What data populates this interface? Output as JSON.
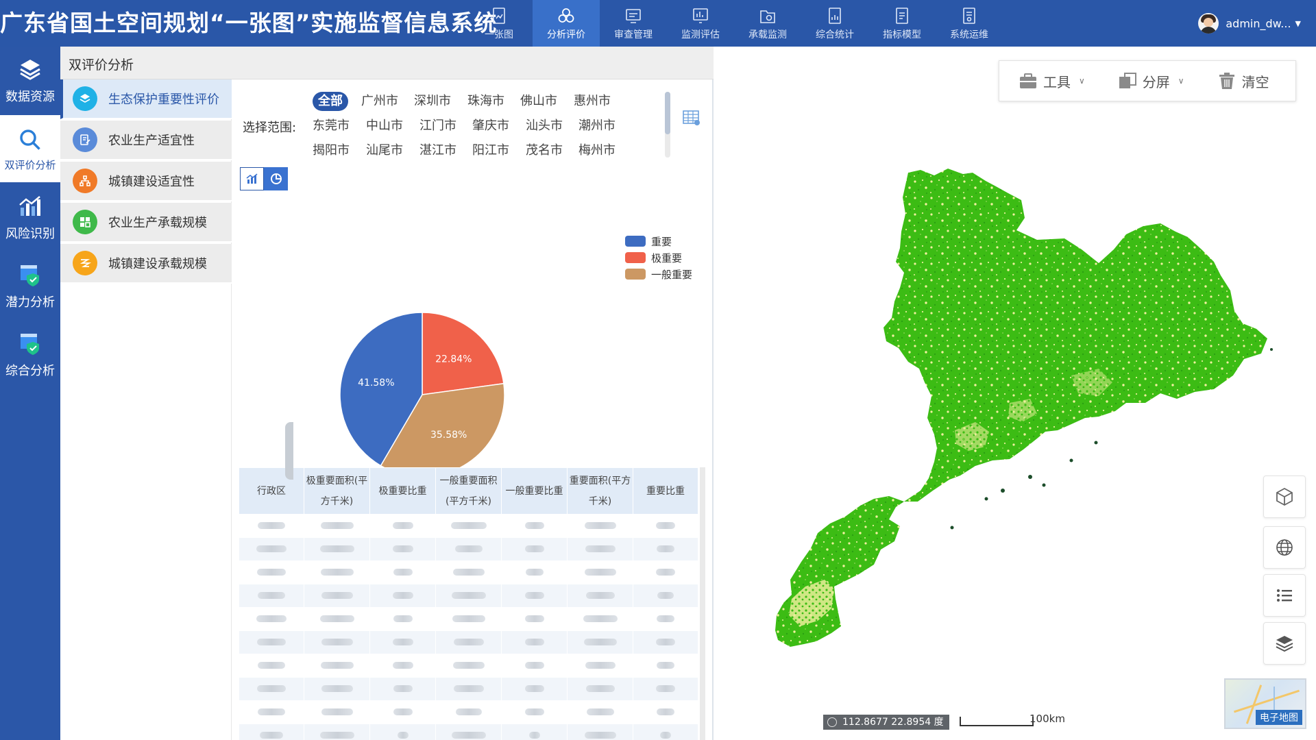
{
  "app": {
    "title": "广东省国土空间规划“一张图”实施监督信息系统"
  },
  "nav": [
    {
      "label": "一张图",
      "icon": "map-doc-icon",
      "active": false
    },
    {
      "label": "分析评价",
      "icon": "analysis-icon",
      "active": true
    },
    {
      "label": "审查管理",
      "icon": "review-icon",
      "active": false
    },
    {
      "label": "监测评估",
      "icon": "monitor-icon",
      "active": false
    },
    {
      "label": "承载监测",
      "icon": "capacity-icon",
      "active": false
    },
    {
      "label": "综合统计",
      "icon": "stats-icon",
      "active": false
    },
    {
      "label": "指标模型",
      "icon": "model-icon",
      "active": false
    },
    {
      "label": "系统运维",
      "icon": "ops-icon",
      "active": false
    }
  ],
  "user": {
    "name": "admin_dw..."
  },
  "rail": [
    {
      "label": "数据资源",
      "icon": "layers-stack-icon",
      "active": false
    },
    {
      "label": "双评价分析",
      "icon": "magnifier-icon",
      "active": true
    },
    {
      "label": "风险识别",
      "icon": "bar-trend-icon",
      "active": false
    },
    {
      "label": "潜力分析",
      "icon": "shield-check-icon",
      "active": false
    },
    {
      "label": "综合分析",
      "icon": "shield-check-icon",
      "active": false
    }
  ],
  "panel": {
    "title": "双评价分析"
  },
  "subnav": [
    {
      "label": "生态保护重要性评价",
      "color": "#1fb1e6",
      "active": true
    },
    {
      "label": "农业生产适宜性",
      "color": "#5a8bd9",
      "active": false
    },
    {
      "label": "城镇建设适宜性",
      "color": "#f07a28",
      "active": false
    },
    {
      "label": "农业生产承载规模",
      "color": "#3fb94a",
      "active": false
    },
    {
      "label": "城镇建设承载规模",
      "color": "#f7a51a",
      "active": false
    }
  ],
  "scope": {
    "label": "选择范围:",
    "cities": [
      [
        "全部",
        "广州市",
        "深圳市",
        "珠海市",
        "佛山市",
        "惠州市"
      ],
      [
        "东莞市",
        "中山市",
        "江门市",
        "肇庆市",
        "汕头市",
        "潮州市"
      ],
      [
        "揭阳市",
        "汕尾市",
        "湛江市",
        "阳江市",
        "茂名市",
        "梅州市"
      ]
    ],
    "selected": "全部"
  },
  "chart_data": {
    "type": "pie",
    "title": "",
    "legend_position": "top-right",
    "series": [
      {
        "name": "重要",
        "value": 41.58,
        "label": "41.58%",
        "color": "#3d6cc1"
      },
      {
        "name": "极重要",
        "value": 22.84,
        "label": "22.84%",
        "color": "#f0614a"
      },
      {
        "name": "一般重要",
        "value": 35.58,
        "label": "35.58%",
        "color": "#cc9863"
      }
    ]
  },
  "table": {
    "headers": [
      "行政区",
      "极重要面积(平方千米)",
      "极重要比重",
      "一般重要面积(平方千米)",
      "一般重要比重",
      "重要面积(平方千米)",
      "重要比重"
    ],
    "row_count": 10
  },
  "map_toolbar": {
    "tools": {
      "label": "工具"
    },
    "split": {
      "label": "分屏"
    },
    "clear": {
      "label": "清空"
    }
  },
  "map_controls": [
    "3d-cube-icon",
    "globe-icon",
    "list-icon",
    "layers-icon"
  ],
  "status": {
    "coordinates": "112.8677 22.8954 度",
    "scale": "100km",
    "basemap": "电子地图"
  },
  "colors": {
    "header": "#2a57a8",
    "accent": "#3970c9",
    "land_green": "#3cbc14",
    "land_yellow": "#f2f0a0"
  }
}
